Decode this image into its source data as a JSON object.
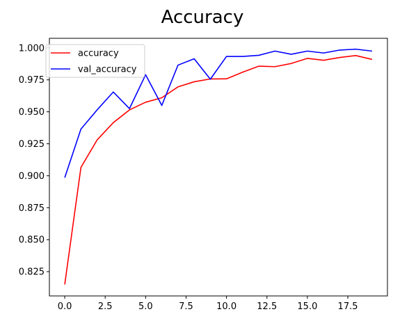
{
  "chart_data": {
    "type": "line",
    "title": "Accuracy",
    "xlabel": "",
    "ylabel": "",
    "xlim": [
      -0.95,
      19.95
    ],
    "ylim": [
      0.806,
      1.0075
    ],
    "x_ticks": [
      0.0,
      2.5,
      5.0,
      7.5,
      10.0,
      12.5,
      15.0,
      17.5
    ],
    "x_tick_labels": [
      "0.0",
      "2.5",
      "5.0",
      "7.5",
      "10.0",
      "12.5",
      "15.0",
      "17.5"
    ],
    "y_ticks": [
      0.825,
      0.85,
      0.875,
      0.9,
      0.925,
      0.95,
      0.975,
      1.0
    ],
    "y_tick_labels": [
      "0.825",
      "0.850",
      "0.875",
      "0.900",
      "0.925",
      "0.950",
      "0.975",
      "1.000"
    ],
    "grid": false,
    "legend_position": "top-left",
    "x": [
      0,
      1,
      2,
      3,
      4,
      5,
      6,
      7,
      8,
      9,
      10,
      11,
      12,
      13,
      14,
      15,
      16,
      17,
      18,
      19
    ],
    "series": [
      {
        "name": "accuracy",
        "color": "#ff0000",
        "values": [
          0.815,
          0.9065,
          0.928,
          0.9415,
          0.9515,
          0.9575,
          0.961,
          0.9695,
          0.9735,
          0.9757,
          0.9758,
          0.981,
          0.9857,
          0.9853,
          0.9878,
          0.9918,
          0.9903,
          0.9925,
          0.994,
          0.991
        ]
      },
      {
        "name": "val_accuracy",
        "color": "#0000ff",
        "values": [
          0.8985,
          0.9365,
          0.9515,
          0.9655,
          0.9525,
          0.979,
          0.955,
          0.9865,
          0.9915,
          0.9755,
          0.9933,
          0.9933,
          0.9942,
          0.9975,
          0.995,
          0.9975,
          0.996,
          0.9983,
          0.999,
          0.9975
        ]
      }
    ]
  }
}
